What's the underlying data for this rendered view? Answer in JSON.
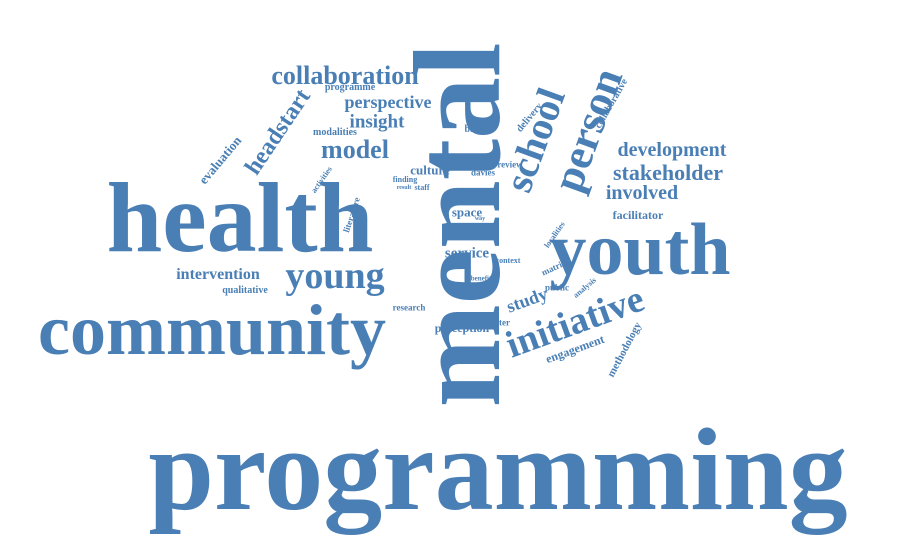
{
  "style": {
    "word_color": "#4a7fb5",
    "background": "#ffffff"
  },
  "words": [
    {
      "text": "programming",
      "name": "word-programming"
    },
    {
      "text": "mental",
      "name": "word-mental"
    },
    {
      "text": "health",
      "name": "word-health"
    },
    {
      "text": "community",
      "name": "word-community"
    },
    {
      "text": "youth",
      "name": "word-youth"
    },
    {
      "text": "young",
      "name": "word-young"
    },
    {
      "text": "initiative",
      "name": "word-initiative"
    },
    {
      "text": "person",
      "name": "word-person"
    },
    {
      "text": "school",
      "name": "word-school"
    },
    {
      "text": "collaboration",
      "name": "word-collaboration"
    },
    {
      "text": "headstart",
      "name": "word-headstart"
    },
    {
      "text": "model",
      "name": "word-model"
    },
    {
      "text": "development",
      "name": "word-development"
    },
    {
      "text": "stakeholder",
      "name": "word-stakeholder"
    },
    {
      "text": "involved",
      "name": "word-involved"
    },
    {
      "text": "perspective",
      "name": "word-perspective"
    },
    {
      "text": "insight",
      "name": "word-insight"
    },
    {
      "text": "intervention",
      "name": "word-intervention"
    },
    {
      "text": "study",
      "name": "word-study"
    },
    {
      "text": "service",
      "name": "word-service"
    },
    {
      "text": "space",
      "name": "word-space"
    },
    {
      "text": "culture",
      "name": "word-culture"
    },
    {
      "text": "facilitator",
      "name": "word-facilitator"
    },
    {
      "text": "evaluation",
      "name": "word-evaluation"
    },
    {
      "text": "engagement",
      "name": "word-engagement"
    },
    {
      "text": "perception",
      "name": "word-perception"
    },
    {
      "text": "methodology",
      "name": "word-methodology"
    },
    {
      "text": "collaborative",
      "name": "word-collaborative"
    },
    {
      "text": "programme",
      "name": "word-programme"
    },
    {
      "text": "modalities",
      "name": "word-modalities"
    },
    {
      "text": "barrier",
      "name": "word-barrier"
    },
    {
      "text": "delivery",
      "name": "word-delivery"
    },
    {
      "text": "davies",
      "name": "word-davies"
    },
    {
      "text": "review",
      "name": "word-review"
    },
    {
      "text": "finding",
      "name": "word-finding"
    },
    {
      "text": "activities",
      "name": "word-activities"
    },
    {
      "text": "result",
      "name": "word-result"
    },
    {
      "text": "staff",
      "name": "word-staff"
    },
    {
      "text": "literature",
      "name": "word-literature"
    },
    {
      "text": "way",
      "name": "word-way"
    },
    {
      "text": "context",
      "name": "word-context"
    },
    {
      "text": "localities",
      "name": "word-localities"
    },
    {
      "text": "benefit",
      "name": "word-benefit"
    },
    {
      "text": "matrix",
      "name": "word-matrix"
    },
    {
      "text": "public",
      "name": "word-public"
    },
    {
      "text": "analysis",
      "name": "word-analysis"
    },
    {
      "text": "qualitative",
      "name": "word-qualitative"
    },
    {
      "text": "research",
      "name": "word-research"
    },
    {
      "text": "matter",
      "name": "word-matter"
    }
  ]
}
